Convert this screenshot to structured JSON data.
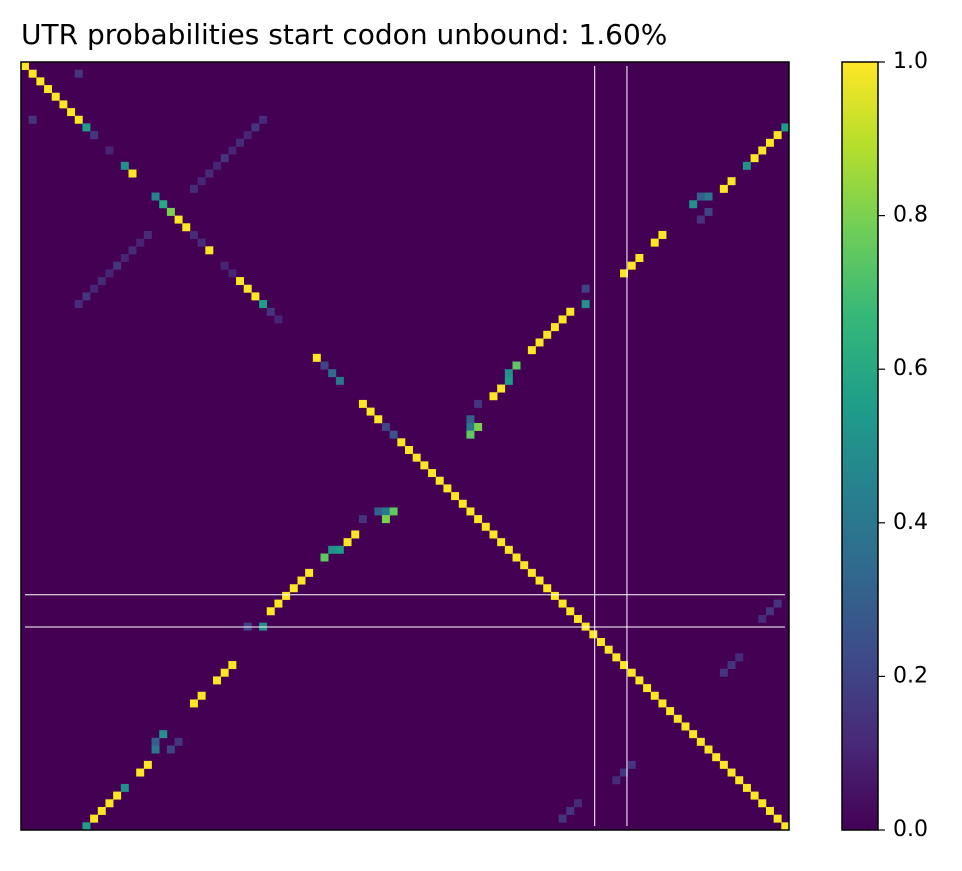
{
  "chart_data": {
    "type": "pairing-heatmap",
    "title": "UTR probabilities start codon unbound: 1.60%",
    "colormap": "viridis",
    "clim": [
      0,
      1
    ],
    "cticks": [
      {
        "value": 0,
        "label": "0.0"
      },
      0.2,
      0.4,
      0.6,
      0.8,
      {
        "value": 1,
        "label": "1.0"
      }
    ],
    "diagonal": [
      1,
      1,
      1,
      1,
      1,
      1,
      1,
      1,
      0.55,
      0.15,
      0,
      0.1,
      0,
      0.5,
      1,
      0,
      0,
      0.45,
      0.6,
      0.8,
      1,
      1,
      0.12,
      0.12,
      1,
      0,
      0.1,
      0.1,
      1,
      1,
      1,
      0.55,
      0.15,
      0.1,
      0,
      0,
      0,
      0,
      1,
      0.2,
      0.35,
      0.4,
      0,
      0,
      1,
      1,
      1,
      0.2,
      0.25,
      1,
      1,
      1,
      1,
      1,
      1,
      1,
      1,
      1,
      1,
      1,
      1,
      1,
      1,
      1,
      1,
      1,
      1,
      1,
      1,
      1,
      1,
      1,
      1,
      1,
      1,
      1,
      1,
      1,
      1,
      1,
      1,
      1,
      1,
      1,
      1,
      1,
      1,
      1,
      1,
      1,
      1,
      1,
      1,
      1,
      1,
      1,
      1,
      1,
      1,
      1
    ],
    "pairs": [
      [
        8,
        99,
        0.55
      ],
      [
        9,
        98,
        1
      ],
      [
        10,
        97,
        1
      ],
      [
        11,
        96,
        1
      ],
      [
        12,
        95,
        1
      ],
      [
        13,
        94,
        0.5
      ],
      [
        15,
        92,
        1
      ],
      [
        16,
        91,
        1
      ],
      [
        17,
        89,
        0.4
      ],
      [
        17,
        88,
        0.3
      ],
      [
        18,
        87,
        0.5
      ],
      [
        19,
        89,
        0.2
      ],
      [
        20,
        88,
        0.15
      ],
      [
        22,
        83,
        1
      ],
      [
        23,
        82,
        1
      ],
      [
        25,
        80,
        1
      ],
      [
        26,
        79,
        1
      ],
      [
        27,
        78,
        1
      ],
      [
        29,
        73,
        0.2
      ],
      [
        31,
        73,
        0.5
      ],
      [
        32,
        71,
        1
      ],
      [
        33,
        70,
        1
      ],
      [
        34,
        69,
        1
      ],
      [
        35,
        68,
        1
      ],
      [
        36,
        67,
        1
      ],
      [
        37,
        66,
        1
      ],
      [
        39,
        64,
        0.75
      ],
      [
        40,
        63,
        0.5
      ],
      [
        41,
        63,
        0.55
      ],
      [
        42,
        62,
        1
      ],
      [
        43,
        61,
        1
      ],
      [
        44,
        59,
        0.15
      ],
      [
        46,
        58,
        0.3
      ],
      [
        47,
        58,
        0.4
      ],
      [
        47,
        59,
        0.8
      ],
      [
        48,
        58,
        0.75
      ],
      [
        1,
        7,
        0.15
      ],
      [
        7,
        31,
        0.12
      ],
      [
        8,
        30,
        0.15
      ],
      [
        9,
        29,
        0.1
      ],
      [
        10,
        28,
        0.12
      ],
      [
        11,
        27,
        0.1
      ],
      [
        12,
        26,
        0.15
      ],
      [
        13,
        25,
        0.1
      ],
      [
        14,
        24,
        0.12
      ],
      [
        15,
        23,
        0.1
      ],
      [
        16,
        22,
        0.12
      ],
      [
        70,
        98,
        0.15
      ],
      [
        71,
        97,
        0.15
      ],
      [
        72,
        96,
        0.12
      ],
      [
        77,
        93,
        0.12
      ],
      [
        78,
        92,
        0.15
      ],
      [
        79,
        91,
        0.15
      ]
    ],
    "start_codon_lines": [
      74.2,
      78.4
    ]
  }
}
